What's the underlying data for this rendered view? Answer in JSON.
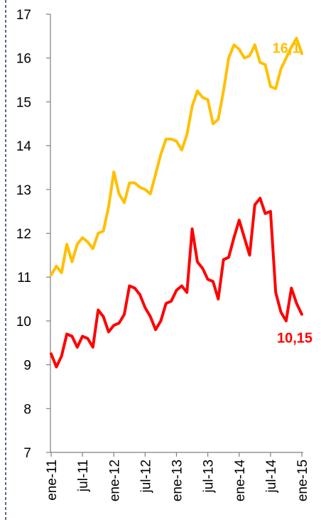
{
  "chart_data": {
    "type": "line",
    "x": [
      "ene-11",
      "feb-11",
      "mar-11",
      "abr-11",
      "may-11",
      "jun-11",
      "jul-11",
      "ago-11",
      "sep-11",
      "oct-11",
      "nov-11",
      "dic-11",
      "ene-12",
      "feb-12",
      "mar-12",
      "abr-12",
      "may-12",
      "jun-12",
      "jul-12",
      "ago-12",
      "sep-12",
      "oct-12",
      "nov-12",
      "dic-12",
      "ene-13",
      "feb-13",
      "mar-13",
      "abr-13",
      "may-13",
      "jun-13",
      "jul-13",
      "ago-13",
      "sep-13",
      "oct-13",
      "nov-13",
      "dic-13",
      "ene-14",
      "feb-14",
      "mar-14",
      "abr-14",
      "may-14",
      "jun-14",
      "jul-14",
      "ago-14",
      "sep-14",
      "oct-14",
      "nov-14",
      "dic-14",
      "ene-15"
    ],
    "x_tick_labels": [
      "ene-11",
      "jul-11",
      "ene-12",
      "jul-12",
      "ene-13",
      "jul-13",
      "ene-14",
      "jul-14",
      "ene-15"
    ],
    "ylim": [
      7,
      17
    ],
    "y_ticks": [
      "7",
      "8",
      "9",
      "10",
      "11",
      "12",
      "13",
      "14",
      "15",
      "16",
      "17"
    ],
    "series": [
      {
        "color": "#FFC000",
        "end_label": "16,1",
        "values": [
          11.05,
          11.25,
          11.1,
          11.75,
          11.35,
          11.75,
          11.9,
          11.8,
          11.65,
          12.0,
          12.05,
          12.6,
          13.4,
          12.9,
          12.7,
          13.15,
          13.15,
          13.05,
          13.0,
          12.9,
          13.35,
          13.8,
          14.15,
          14.15,
          14.1,
          13.9,
          14.25,
          14.9,
          15.25,
          15.1,
          15.05,
          14.5,
          14.6,
          15.25,
          16.0,
          16.3,
          16.2,
          16.0,
          16.05,
          16.3,
          15.9,
          15.85,
          15.35,
          15.3,
          15.75,
          16.0,
          16.25,
          16.45,
          16.1
        ]
      },
      {
        "color": "#FF0000",
        "end_label": "10,15",
        "values": [
          9.25,
          8.95,
          9.2,
          9.7,
          9.65,
          9.4,
          9.65,
          9.6,
          9.4,
          10.25,
          10.1,
          9.75,
          9.9,
          9.95,
          10.15,
          10.8,
          10.75,
          10.6,
          10.3,
          10.1,
          9.8,
          10.0,
          10.4,
          10.45,
          10.7,
          10.8,
          10.65,
          12.1,
          11.35,
          11.2,
          10.95,
          10.9,
          10.5,
          11.4,
          11.45,
          11.9,
          12.3,
          11.9,
          11.5,
          12.65,
          12.8,
          12.45,
          12.5,
          10.65,
          10.2,
          10.0,
          10.75,
          10.4,
          10.15
        ]
      }
    ]
  }
}
